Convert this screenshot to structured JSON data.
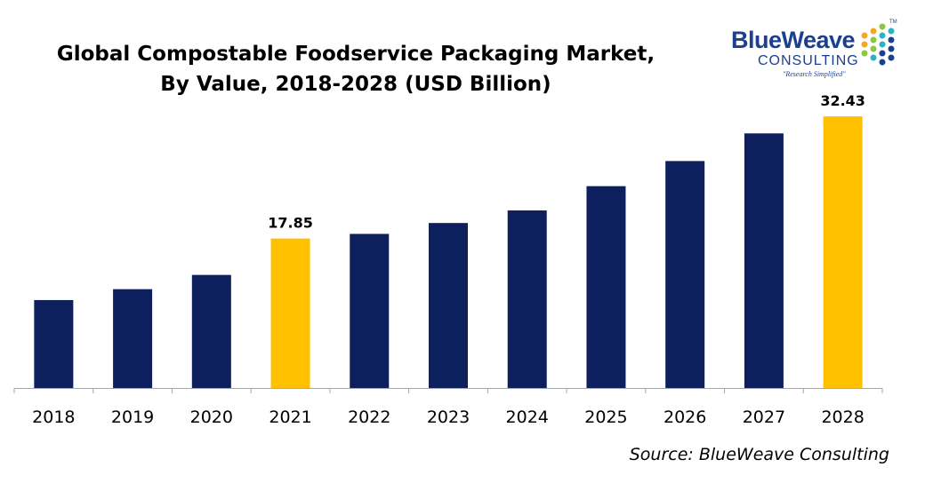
{
  "title_line1": "Global Compostable Foodservice Packaging Market,",
  "title_line2": "By Value, 2018-2028 (USD Billion)",
  "logo": {
    "name": "BlueWeave",
    "sub": "CONSULTING",
    "tagline": "\"Research Simplified\"",
    "mark": "TM"
  },
  "source": "Source: BlueWeave Consulting",
  "colors": {
    "bar": "#0d1f5c",
    "highlight": "#ffc000",
    "axis": "#a6a6a6"
  },
  "chart_data": {
    "type": "bar",
    "categories": [
      "2018",
      "2019",
      "2020",
      "2021",
      "2022",
      "2023",
      "2024",
      "2025",
      "2026",
      "2027",
      "2028"
    ],
    "values": [
      10.5,
      11.8,
      13.5,
      17.85,
      18.4,
      19.7,
      21.2,
      24.1,
      27.1,
      30.4,
      32.43
    ],
    "highlighted": [
      "2021",
      "2028"
    ],
    "data_labels": {
      "2021": "17.85",
      "2028": "32.43"
    },
    "ylim": [
      0,
      33.5
    ],
    "grid": false,
    "legend": "none"
  }
}
